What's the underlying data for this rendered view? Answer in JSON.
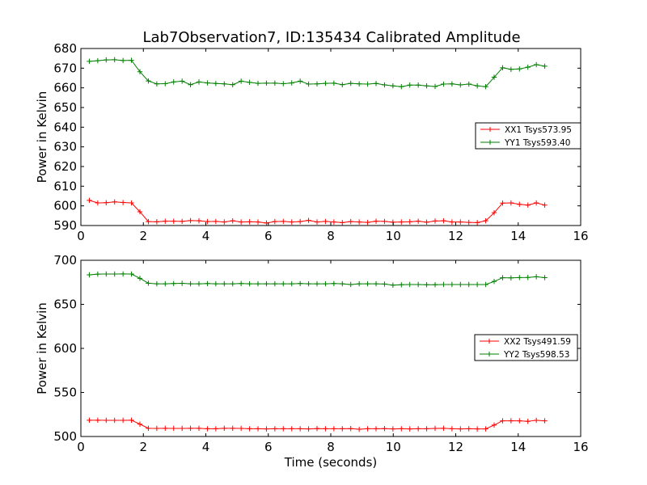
{
  "title": "Lab7Observation7, ID:135434 Calibrated Amplitude",
  "colors": {
    "red": "#ff0000",
    "green": "#007f00"
  },
  "chart_data": [
    {
      "type": "line",
      "xlabel": "",
      "ylabel": "Power in Kelvin",
      "xlim": [
        0,
        16
      ],
      "ylim": [
        590,
        680
      ],
      "xticks": [
        0,
        2,
        4,
        6,
        8,
        10,
        12,
        14,
        16
      ],
      "yticks": [
        590,
        600,
        610,
        620,
        630,
        640,
        650,
        660,
        670,
        680
      ],
      "legend": "center-right",
      "x": [
        0.27,
        0.54,
        0.81,
        1.08,
        1.35,
        1.62,
        1.89,
        2.16,
        2.43,
        2.7,
        2.97,
        3.24,
        3.51,
        3.78,
        4.05,
        4.32,
        4.59,
        4.86,
        5.13,
        5.4,
        5.67,
        5.94,
        6.21,
        6.48,
        6.75,
        7.02,
        7.29,
        7.56,
        7.83,
        8.1,
        8.37,
        8.64,
        8.91,
        9.18,
        9.45,
        9.72,
        9.99,
        10.26,
        10.53,
        10.8,
        11.07,
        11.34,
        11.61,
        11.88,
        12.15,
        12.42,
        12.69,
        12.96,
        13.23,
        13.5,
        13.77,
        14.04,
        14.31,
        14.58,
        14.85
      ],
      "series": [
        {
          "name": "XX1 Tsys573.95",
          "color": "#ff0000",
          "values": [
            602.8,
            601.5,
            601.6,
            602.0,
            601.7,
            601.5,
            597.0,
            592.0,
            591.9,
            592.2,
            592.2,
            592.1,
            592.5,
            592.4,
            592.0,
            592.1,
            591.8,
            592.4,
            591.8,
            591.9,
            591.8,
            591.3,
            592.0,
            592.1,
            591.8,
            592.0,
            592.6,
            591.8,
            592.1,
            591.8,
            591.5,
            592.0,
            591.8,
            591.6,
            592.2,
            592.1,
            591.7,
            591.8,
            591.9,
            592.2,
            591.7,
            592.3,
            592.4,
            591.8,
            591.8,
            591.6,
            591.5,
            592.4,
            596.5,
            601.4,
            601.5,
            600.8,
            600.4,
            601.5,
            600.4
          ]
        },
        {
          "name": "YY1 Tsys593.40",
          "color": "#007f00",
          "values": [
            673.5,
            673.8,
            674.2,
            674.3,
            673.9,
            674.0,
            668.2,
            663.5,
            662.0,
            662.1,
            663.0,
            663.4,
            661.6,
            663.0,
            662.5,
            662.2,
            662.0,
            661.6,
            663.4,
            662.8,
            662.3,
            662.4,
            662.4,
            662.1,
            662.5,
            663.4,
            661.9,
            662.0,
            662.3,
            662.4,
            661.6,
            662.3,
            662.0,
            661.9,
            662.2,
            661.5,
            661.0,
            660.6,
            661.4,
            661.4,
            661.0,
            660.7,
            661.9,
            662.0,
            661.5,
            661.9,
            661.0,
            660.6,
            665.4,
            670.2,
            669.4,
            669.6,
            670.5,
            671.8,
            671.0
          ]
        }
      ]
    },
    {
      "type": "line",
      "xlabel": "Time (seconds)",
      "ylabel": "Power in Kelvin",
      "xlim": [
        0,
        16
      ],
      "ylim": [
        500,
        700
      ],
      "xticks": [
        0,
        2,
        4,
        6,
        8,
        10,
        12,
        14,
        16
      ],
      "yticks": [
        500,
        550,
        600,
        650,
        700
      ],
      "legend": "center-right",
      "x": [
        0.27,
        0.54,
        0.81,
        1.08,
        1.35,
        1.62,
        1.89,
        2.16,
        2.43,
        2.7,
        2.97,
        3.24,
        3.51,
        3.78,
        4.05,
        4.32,
        4.59,
        4.86,
        5.13,
        5.4,
        5.67,
        5.94,
        6.21,
        6.48,
        6.75,
        7.02,
        7.29,
        7.56,
        7.83,
        8.1,
        8.37,
        8.64,
        8.91,
        9.18,
        9.45,
        9.72,
        9.99,
        10.26,
        10.53,
        10.8,
        11.07,
        11.34,
        11.61,
        11.88,
        12.15,
        12.42,
        12.69,
        12.96,
        13.23,
        13.5,
        13.77,
        14.04,
        14.31,
        14.58,
        14.85
      ],
      "series": [
        {
          "name": "XX2 Tsys491.59",
          "color": "#ff0000",
          "values": [
            518.5,
            518.5,
            518.4,
            518.4,
            518.4,
            518.5,
            514.0,
            509.3,
            509.2,
            509.3,
            509.2,
            509.2,
            509.3,
            509.3,
            508.8,
            508.8,
            509.3,
            509.3,
            509.2,
            508.8,
            508.8,
            508.6,
            508.8,
            508.8,
            508.8,
            508.8,
            508.6,
            509.0,
            508.8,
            508.8,
            508.8,
            509.0,
            508.2,
            508.8,
            508.8,
            509.0,
            508.6,
            508.8,
            508.6,
            508.8,
            508.8,
            509.2,
            509.3,
            508.8,
            508.6,
            508.8,
            508.6,
            508.6,
            513.0,
            517.8,
            517.8,
            517.8,
            517.2,
            518.4,
            517.8
          ]
        },
        {
          "name": "YY2 Tsys598.53",
          "color": "#007f00",
          "values": [
            683.5,
            684.3,
            684.4,
            684.4,
            684.5,
            684.4,
            679.5,
            674.0,
            673.3,
            673.3,
            673.6,
            673.8,
            673.3,
            673.3,
            673.6,
            673.3,
            673.3,
            673.3,
            673.6,
            673.3,
            673.3,
            673.3,
            673.3,
            673.3,
            673.3,
            673.6,
            673.3,
            673.3,
            673.3,
            673.6,
            673.3,
            672.5,
            673.3,
            673.3,
            673.3,
            673.0,
            671.8,
            672.2,
            672.5,
            672.5,
            672.3,
            672.3,
            672.5,
            672.5,
            672.5,
            672.5,
            672.5,
            672.5,
            676.0,
            680.2,
            680.0,
            680.4,
            680.5,
            681.3,
            680.3
          ]
        }
      ]
    }
  ]
}
